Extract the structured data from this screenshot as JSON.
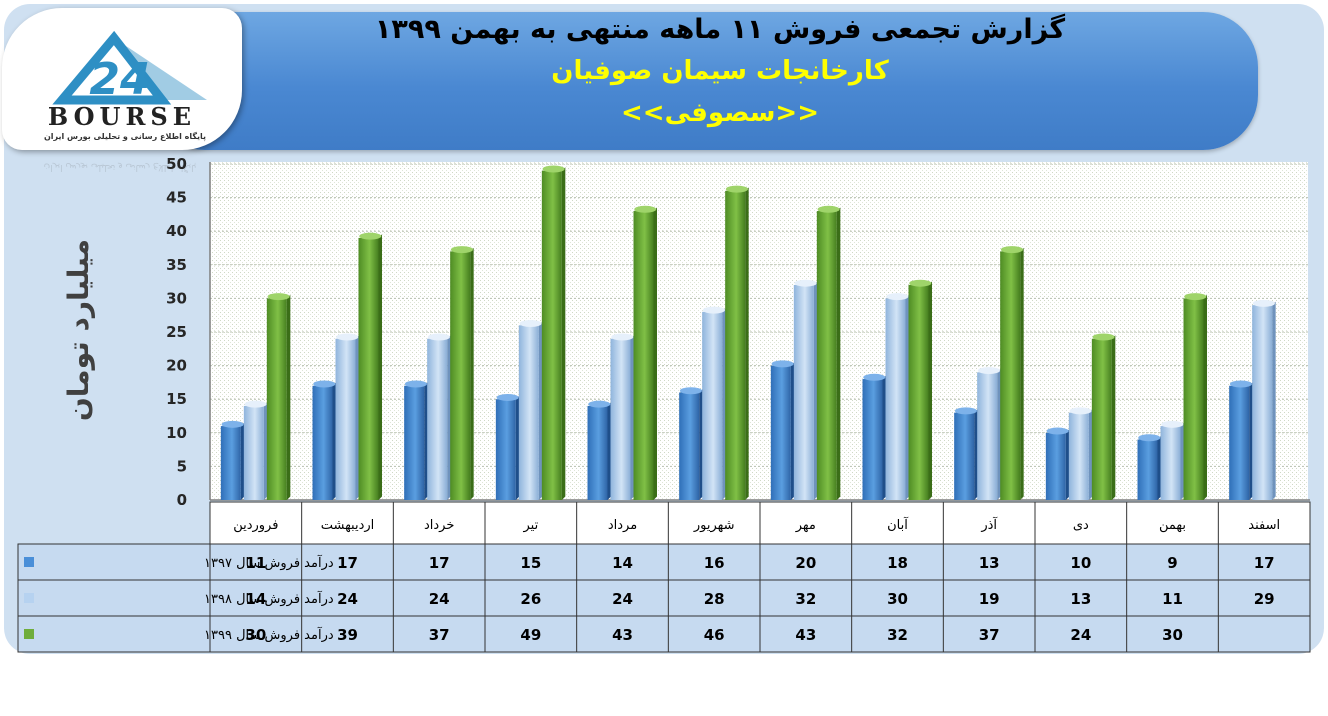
{
  "header": {
    "title": "گزارش تجمعی فروش ۱۱ ماهه منتهی به بهمن ۱۳۹۹",
    "company": "کارخانجات سیمان صوفیان",
    "symbol": "<<سصوفی>>"
  },
  "logo": {
    "brand": "BOURSE",
    "number": "24",
    "tagline": "پایگاه اطلاع رسانی و تحلیلی بورس ایران"
  },
  "colors": {
    "series_1397": "#4a8fd8",
    "series_1398": "#b6d2f0",
    "series_1399": "#6fad3c",
    "header_bg": "#4a88d2",
    "panel_bg": "#cfe0f1"
  },
  "chart_data": {
    "type": "bar",
    "ylabel": "میلیارد تومان",
    "ylim": [
      0,
      50
    ],
    "yticks": [
      0,
      5,
      10,
      15,
      20,
      25,
      30,
      35,
      40,
      45,
      50
    ],
    "grid": true,
    "categories": [
      "فروردین",
      "اردیبهشت",
      "خرداد",
      "تیر",
      "مرداد",
      "شهریور",
      "مهر",
      "آبان",
      "آذر",
      "دی",
      "بهمن",
      "اسفند"
    ],
    "series": [
      {
        "name": "درآمد فروش سال ۱۳۹۷",
        "values": [
          11,
          17,
          17,
          15,
          14,
          16,
          20,
          18,
          13,
          10,
          9,
          17
        ]
      },
      {
        "name": "درآمد فروش سال ۱۳۹۸",
        "values": [
          14,
          24,
          24,
          26,
          24,
          28,
          32,
          30,
          19,
          13,
          11,
          29
        ]
      },
      {
        "name": "درآمد فروش سال ۱۳۹۹",
        "values": [
          30,
          39,
          37,
          49,
          43,
          46,
          43,
          32,
          37,
          24,
          30,
          null
        ]
      }
    ]
  }
}
